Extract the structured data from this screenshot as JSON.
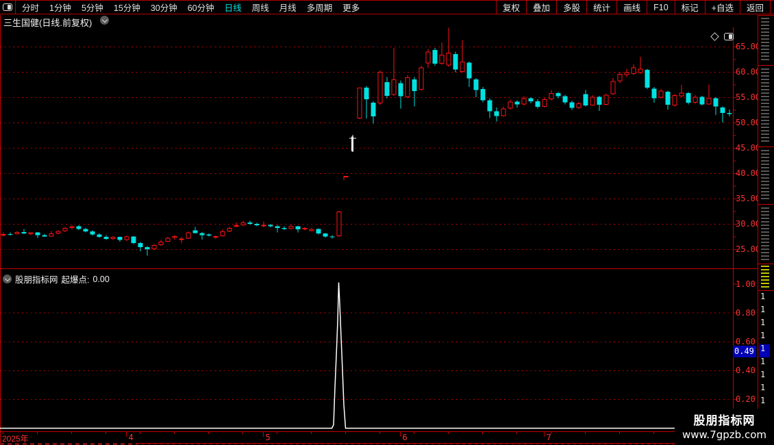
{
  "colors": {
    "background": "#000000",
    "line_red": "#c80000",
    "text_red": "#ff3232",
    "up_red": "#ff1414",
    "down_cyan": "#00e1e1",
    "white": "#ffffff",
    "badge_blue": "#0000b4",
    "active_tab_cyan": "#00e1e1"
  },
  "toolbar": {
    "left_items": [
      "分时",
      "1分钟",
      "5分钟",
      "15分钟",
      "30分钟",
      "60分钟",
      "日线",
      "周线",
      "月线",
      "多周期",
      "更多"
    ],
    "more_arrow": "›",
    "active_item": "日线",
    "right_items": [
      "复权",
      "叠加",
      "多股",
      "统计",
      "画线",
      "F10",
      "标记",
      "+自选",
      "返回"
    ]
  },
  "title_bar": {
    "title": "三生国健(日线.前复权)"
  },
  "main_chart": {
    "y_axis_labels": [
      "65.00",
      "60.00",
      "55.00",
      "50.00",
      "45.00",
      "40.00",
      "35.00",
      "30.00",
      "25.00"
    ],
    "chart_data": {
      "type": "candlestick",
      "title": "三生国健 日线 前复权",
      "y_ticks": [
        65,
        60,
        55,
        50,
        45,
        40,
        35,
        30,
        25
      ],
      "ylim": [
        23.0,
        69.5
      ],
      "grid": "dotted-red-horizontal",
      "up_color": "#ff1414",
      "down_color": "#00e1e1",
      "candles": [
        [
          27.8,
          28.3,
          27.5,
          28.0
        ],
        [
          28.0,
          28.3,
          27.7,
          27.9
        ],
        [
          28.0,
          28.6,
          27.9,
          28.4
        ],
        [
          28.4,
          29.0,
          28.0,
          28.1
        ],
        [
          28.0,
          28.4,
          27.8,
          28.3
        ],
        [
          28.3,
          28.4,
          27.2,
          27.8
        ],
        [
          27.8,
          28.0,
          27.4,
          27.5
        ],
        [
          27.5,
          28.6,
          27.4,
          28.1
        ],
        [
          28.1,
          28.7,
          28.0,
          28.6
        ],
        [
          28.6,
          29.4,
          28.4,
          29.2
        ],
        [
          29.2,
          29.8,
          28.9,
          29.5
        ],
        [
          29.5,
          29.7,
          28.8,
          29.0
        ],
        [
          29.0,
          29.2,
          28.3,
          28.5
        ],
        [
          28.5,
          28.7,
          27.7,
          27.9
        ],
        [
          27.9,
          28.2,
          27.2,
          27.4
        ],
        [
          27.4,
          27.8,
          26.8,
          27.0
        ],
        [
          27.0,
          27.6,
          26.8,
          27.4
        ],
        [
          27.4,
          27.5,
          26.5,
          26.8
        ],
        [
          26.8,
          27.7,
          26.6,
          27.5
        ],
        [
          27.5,
          27.6,
          26.0,
          26.2
        ],
        [
          26.2,
          26.4,
          24.6,
          25.4
        ],
        [
          25.4,
          25.6,
          23.7,
          25.0
        ],
        [
          25.0,
          26.0,
          24.9,
          25.8
        ],
        [
          25.8,
          26.8,
          25.7,
          26.5
        ],
        [
          26.5,
          27.4,
          26.4,
          27.2
        ],
        [
          27.2,
          27.8,
          26.9,
          27.6
        ],
        [
          26.9,
          27.4,
          26.2,
          27.1
        ],
        [
          27.1,
          28.5,
          27.0,
          28.3
        ],
        [
          28.7,
          29.4,
          28.1,
          28.2
        ],
        [
          28.2,
          28.4,
          26.9,
          27.8
        ],
        [
          27.9,
          28.1,
          27.5,
          27.7
        ],
        [
          27.5,
          27.7,
          27.0,
          27.6
        ],
        [
          27.6,
          28.9,
          27.5,
          28.5
        ],
        [
          28.5,
          29.4,
          28.4,
          29.2
        ],
        [
          29.5,
          30.3,
          29.3,
          29.7
        ],
        [
          29.7,
          30.6,
          29.6,
          30.3
        ],
        [
          30.3,
          30.6,
          29.8,
          30.0
        ],
        [
          30.0,
          30.2,
          29.5,
          29.7
        ],
        [
          29.8,
          30.5,
          29.3,
          29.8
        ],
        [
          29.8,
          30.0,
          29.3,
          29.5
        ],
        [
          29.5,
          29.7,
          28.3,
          29.2
        ],
        [
          29.2,
          29.5,
          28.8,
          29.0
        ],
        [
          29.0,
          29.9,
          28.9,
          29.5
        ],
        [
          29.5,
          29.6,
          28.3,
          28.9
        ],
        [
          28.9,
          29.3,
          28.7,
          29.2
        ],
        [
          28.6,
          29.1,
          28.5,
          29.0
        ],
        [
          29.0,
          29.1,
          27.9,
          28.1
        ],
        [
          28.1,
          28.2,
          27.3,
          27.5
        ],
        [
          27.5,
          27.8,
          27.1,
          27.4
        ],
        [
          27.6,
          32.6,
          27.4,
          32.4
        ],
        [
          39.3,
          39.4,
          38.8,
          39.3
        ],
        [
          44.3,
          47.6,
          44.2,
          47.2
        ],
        [
          50.8,
          56.9,
          50.7,
          56.9
        ],
        [
          56.9,
          57.2,
          50.8,
          54.6
        ],
        [
          53.9,
          54.2,
          49.8,
          51.2
        ],
        [
          53.8,
          60.3,
          53.5,
          60.0
        ],
        [
          58.0,
          59.0,
          54.8,
          55.3
        ],
        [
          55.5,
          64.7,
          55.3,
          58.5
        ],
        [
          57.8,
          58.3,
          52.8,
          55.2
        ],
        [
          55.0,
          59.3,
          54.8,
          58.9
        ],
        [
          58.5,
          59.0,
          53.2,
          56.2
        ],
        [
          56.5,
          61.2,
          56.3,
          60.9
        ],
        [
          61.7,
          64.5,
          60.8,
          64.0
        ],
        [
          64.3,
          64.7,
          61.2,
          61.6
        ],
        [
          61.6,
          65.8,
          61.4,
          63.4
        ],
        [
          61.3,
          68.7,
          61.0,
          63.8
        ],
        [
          63.5,
          64.0,
          59.9,
          60.5
        ],
        [
          60.0,
          66.3,
          59.8,
          62.0
        ],
        [
          61.8,
          62.0,
          57.0,
          58.7
        ],
        [
          58.5,
          58.8,
          55.0,
          56.4
        ],
        [
          56.6,
          57.0,
          54.0,
          54.4
        ],
        [
          54.4,
          54.8,
          50.9,
          52.2
        ],
        [
          52.2,
          53.0,
          50.2,
          51.3
        ],
        [
          51.3,
          53.2,
          51.2,
          52.8
        ],
        [
          52.8,
          54.5,
          52.6,
          54.1
        ],
        [
          54.1,
          54.4,
          53.0,
          53.6
        ],
        [
          53.6,
          55.2,
          53.4,
          54.8
        ],
        [
          54.8,
          55.0,
          53.8,
          54.2
        ],
        [
          54.2,
          54.6,
          52.8,
          53.1
        ],
        [
          53.1,
          54.9,
          53.0,
          54.6
        ],
        [
          54.6,
          56.4,
          54.4,
          55.8
        ],
        [
          55.8,
          56.0,
          54.8,
          55.2
        ],
        [
          55.2,
          55.5,
          53.6,
          54.0
        ],
        [
          54.0,
          54.3,
          52.5,
          52.9
        ],
        [
          52.9,
          54.1,
          52.7,
          53.8
        ],
        [
          55.6,
          56.4,
          53.2,
          53.4
        ],
        [
          53.4,
          55.4,
          53.3,
          55.1
        ],
        [
          55.1,
          55.3,
          52.3,
          53.5
        ],
        [
          53.5,
          55.7,
          53.4,
          55.5
        ],
        [
          55.6,
          58.8,
          55.5,
          58.2
        ],
        [
          58.2,
          60.0,
          57.8,
          59.6
        ],
        [
          59.4,
          60.6,
          59.0,
          59.9
        ],
        [
          59.6,
          61.5,
          59.4,
          60.9
        ],
        [
          59.8,
          63.0,
          59.6,
          60.6
        ],
        [
          60.4,
          60.6,
          56.6,
          56.9
        ],
        [
          56.7,
          57.0,
          53.9,
          54.8
        ],
        [
          54.9,
          56.6,
          54.7,
          56.3
        ],
        [
          56.1,
          56.3,
          52.6,
          53.5
        ],
        [
          53.4,
          55.6,
          53.2,
          55.4
        ],
        [
          55.2,
          57.4,
          55.0,
          55.9
        ],
        [
          55.8,
          56.0,
          53.6,
          53.9
        ],
        [
          53.9,
          55.4,
          53.7,
          55.1
        ],
        [
          55.1,
          55.3,
          53.4,
          53.6
        ],
        [
          53.6,
          57.5,
          53.5,
          54.8
        ],
        [
          54.8,
          55.0,
          51.5,
          53.2
        ],
        [
          53.0,
          53.2,
          50.0,
          51.9
        ],
        [
          51.9,
          52.6,
          51.2,
          51.7
        ]
      ],
      "special_styles": {
        "50": "limit-dash",
        "51": "white-bar"
      }
    }
  },
  "indicator_panel": {
    "source_label": "股朋指标网",
    "indicator_name": "起爆点:",
    "indicator_value": "0.00",
    "y_axis_labels": [
      "1.00",
      "0.80",
      "0.60",
      "0.40",
      "0.20"
    ],
    "axis_marker_value": "0.49",
    "chart_data": {
      "type": "line",
      "title": "起爆点",
      "color": "#ffffff",
      "baseline_value": 0,
      "spike_index": 49,
      "spike_value": 1.01,
      "ylim": [
        0,
        1.05
      ],
      "y_ticks": [
        1.0,
        0.8,
        0.6,
        0.4,
        0.2
      ],
      "grid": "dotted-red-horizontal"
    }
  },
  "x_axis": {
    "year_label": "2025年",
    "month_ticks": [
      {
        "label": "4",
        "index": 18
      },
      {
        "label": "5",
        "index": 38
      },
      {
        "label": "6",
        "index": 58
      },
      {
        "label": "7",
        "index": 79
      }
    ]
  },
  "watermark": {
    "line1": "股朋指标网",
    "line2": "www.7gpzb.com"
  },
  "right_strip": {
    "digits": [
      "1",
      "1",
      "1",
      "1",
      "1",
      "1",
      "1",
      "1",
      "1"
    ]
  }
}
